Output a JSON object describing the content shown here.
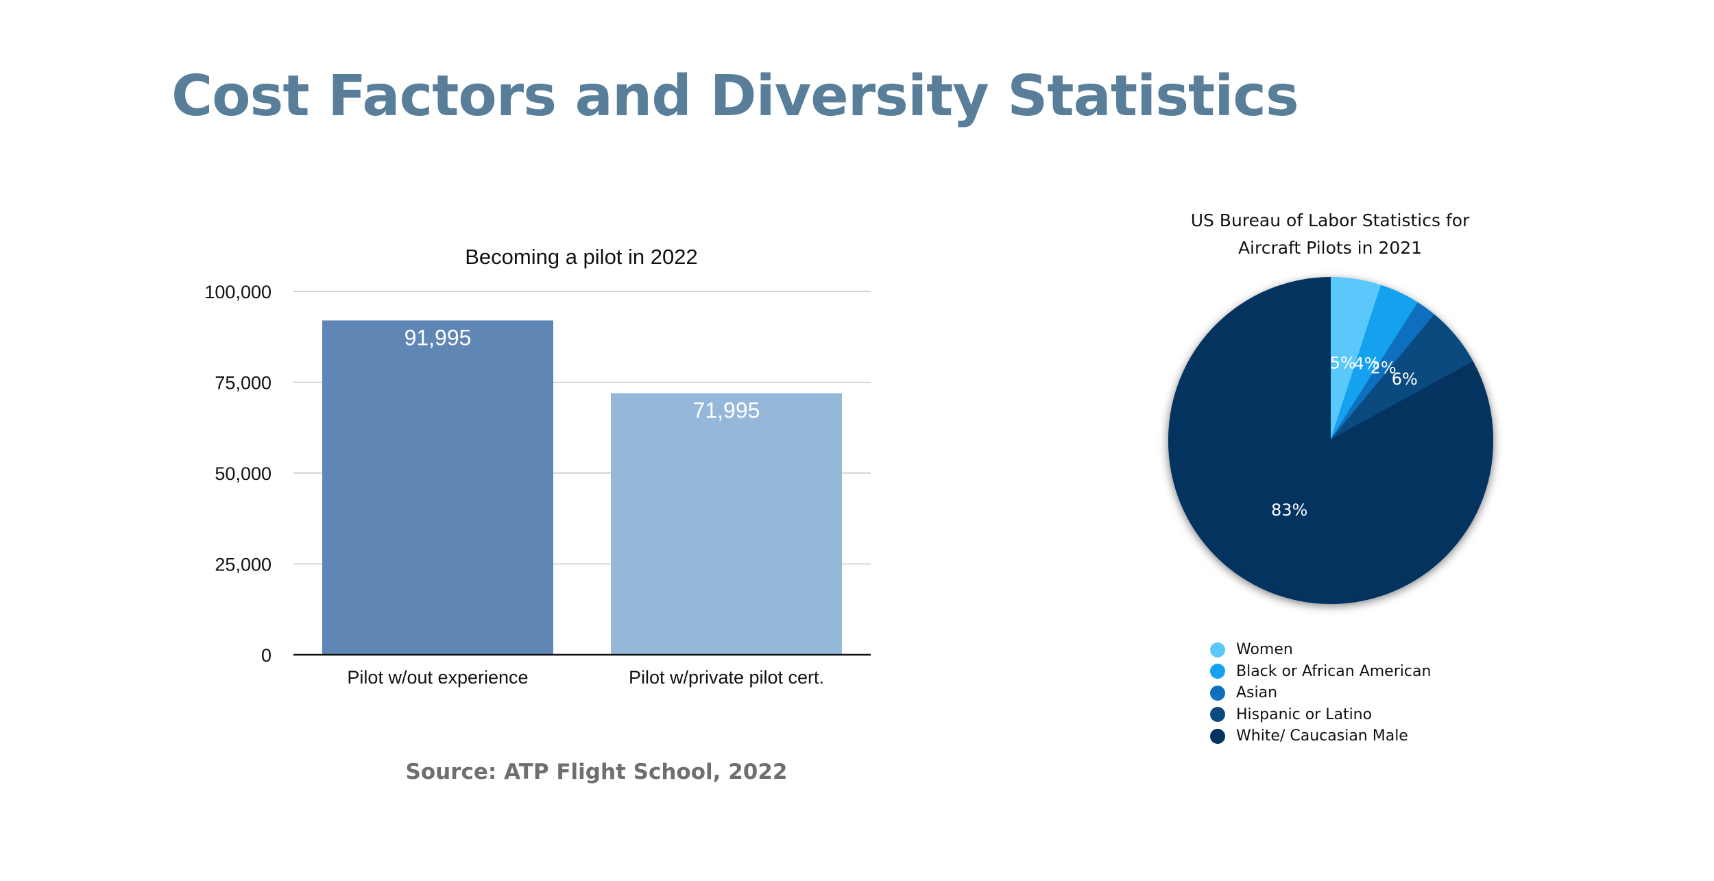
{
  "page": {
    "title": "Cost Factors and Diversity Statistics",
    "source": "Source: ATP Flight School, 2022"
  },
  "chart_data": [
    {
      "type": "bar",
      "title": "Becoming a pilot in 2022",
      "categories": [
        "Pilot w/out experience",
        "Pilot w/private pilot cert."
      ],
      "values": [
        91995,
        71995
      ],
      "value_labels": [
        "91,995",
        "71,995"
      ],
      "colors": [
        "#5f86b5",
        "#95b8da"
      ],
      "xlabel": "",
      "ylabel": "",
      "ylim": [
        0,
        100000
      ],
      "yticks": [
        0,
        25000,
        50000,
        75000,
        100000
      ],
      "ytick_labels": [
        "0",
        "25,000",
        "50,000",
        "75,000",
        "100,000"
      ],
      "grid": true
    },
    {
      "type": "pie",
      "title": "US Bureau of Labor Statistics for Aircraft Pilots in 2021",
      "title_lines": [
        "US Bureau of Labor Statistics for",
        "Aircraft Pilots in 2021"
      ],
      "labels": [
        "Women",
        "Black or African American",
        "Asian",
        "Hispanic or Latino",
        "White/ Caucasian Male"
      ],
      "values": [
        5,
        4,
        2,
        6,
        83
      ],
      "value_labels": [
        "5%",
        "4%",
        "2%",
        "6%",
        "83%"
      ],
      "colors": [
        "#5ac8fa",
        "#14a1f0",
        "#0f6fbf",
        "#0a4a7e",
        "#043360"
      ],
      "legend": "bottom-left"
    }
  ]
}
